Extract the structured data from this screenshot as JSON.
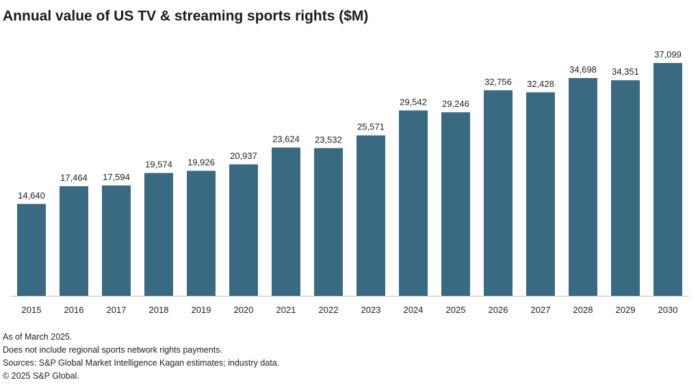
{
  "chart_data": {
    "type": "bar",
    "title": "Annual value of US TV & streaming sports rights ($M)",
    "categories": [
      "2015",
      "2016",
      "2017",
      "2018",
      "2019",
      "2020",
      "2021",
      "2022",
      "2023",
      "2024",
      "2025",
      "2026",
      "2027",
      "2028",
      "2029",
      "2030"
    ],
    "values": [
      14640,
      17464,
      17594,
      19574,
      19926,
      20937,
      23624,
      23532,
      25571,
      29542,
      29246,
      32756,
      32428,
      34698,
      34351,
      37099
    ],
    "data_labels": [
      "14,640",
      "17,464",
      "17,594",
      "19,574",
      "19,926",
      "20,937",
      "23,624",
      "23,532",
      "25,571",
      "29,542",
      "29,246",
      "32,756",
      "32,428",
      "34,698",
      "34,351",
      "37,099"
    ],
    "xlabel": "",
    "ylabel": "",
    "ylim": [
      0,
      37099
    ],
    "grid": false,
    "bar_color": "#3a6a82"
  },
  "notes": [
    "As of March 2025.",
    "Does not include regional sports network rights payments.",
    "Sources: S&P Global Market Intelligence Kagan estimates; industry data.",
    "© 2025 S&P Global."
  ]
}
